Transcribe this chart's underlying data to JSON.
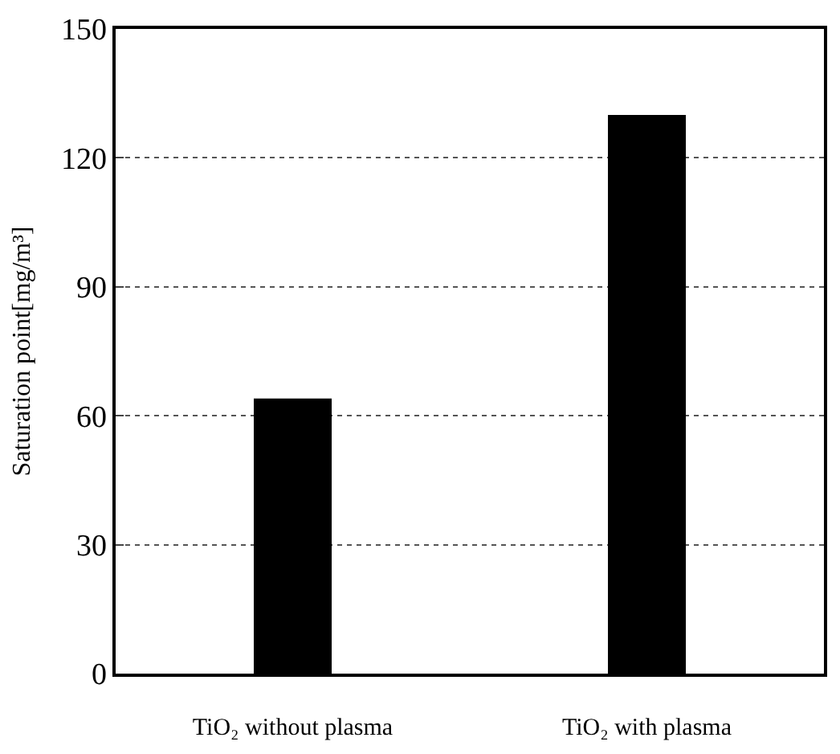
{
  "chart_data": {
    "type": "bar",
    "categories": [
      "TiO₂ without plasma",
      "TiO₂ with plasma"
    ],
    "values": [
      64,
      130
    ],
    "color": "#000000",
    "ylabel": "Saturation point[mg/m³]",
    "ylim": [
      0,
      150
    ],
    "yticks": [
      0,
      30,
      60,
      90,
      120,
      150
    ],
    "grid": "y"
  }
}
